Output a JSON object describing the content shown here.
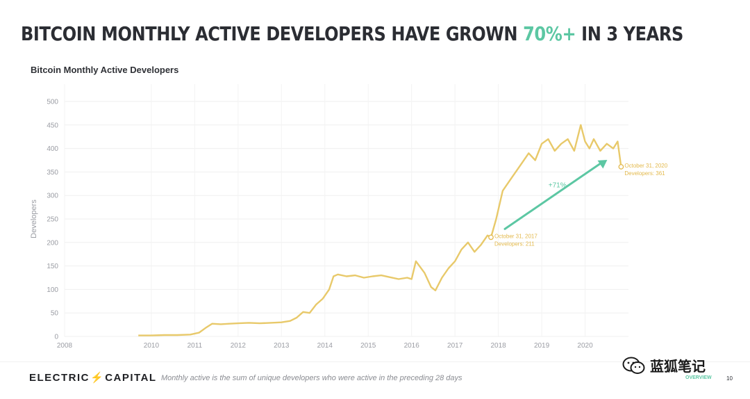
{
  "slide": {
    "headline_pre": "BITCOIN MONTHLY ACTIVE DEVELOPERS HAVE GROWN ",
    "headline_accent": "70%+",
    "headline_post": " IN 3 YEARS",
    "section_tag": "OVERVIEW",
    "page_number": "10"
  },
  "footer": {
    "brand_left": "ELECTRIC",
    "brand_bolt": "⚡",
    "brand_right": "CAPITAL",
    "footnote": "Monthly active is the sum of unique developers who were active in the preceding 28 days"
  },
  "watermark": {
    "text": "蓝狐笔记"
  },
  "colors": {
    "accent": "#5cc7a3",
    "line": "#e8c96a",
    "annotation": "#e3b94c",
    "title": "#2b2d33"
  },
  "chart_data": {
    "type": "line",
    "title": "Bitcoin Monthly Active Developers",
    "xlabel": "",
    "ylabel": "Developers",
    "xlim": [
      2008.0,
      2021.0
    ],
    "ylim": [
      0,
      500
    ],
    "x_ticks": [
      "2008",
      "2010",
      "2011",
      "2012",
      "2013",
      "2014",
      "2015",
      "2016",
      "2017",
      "2018",
      "2019",
      "2020"
    ],
    "y_ticks": [
      0,
      50,
      100,
      150,
      200,
      250,
      300,
      350,
      400,
      450,
      500
    ],
    "grid": true,
    "series": [
      {
        "x": [
          2009.7,
          2010.0,
          2010.3,
          2010.6,
          2010.9,
          2011.1,
          2011.25,
          2011.4,
          2011.6,
          2011.8,
          2012.0,
          2012.25,
          2012.5,
          2012.75,
          2013.0,
          2013.2,
          2013.35,
          2013.5,
          2013.65,
          2013.8,
          2013.95,
          2014.1,
          2014.2,
          2014.3,
          2014.5,
          2014.7,
          2014.9,
          2015.1,
          2015.3,
          2015.5,
          2015.7,
          2015.9,
          2016.0,
          2016.1,
          2016.3,
          2016.45,
          2016.55,
          2016.7,
          2016.85,
          2017.0,
          2017.15,
          2017.3,
          2017.45,
          2017.6,
          2017.75,
          2017.83,
          2017.95,
          2018.1,
          2018.25,
          2018.4,
          2018.55,
          2018.7,
          2018.85,
          2019.0,
          2019.15,
          2019.3,
          2019.45,
          2019.6,
          2019.75,
          2019.9,
          2020.0,
          2020.1,
          2020.2,
          2020.35,
          2020.5,
          2020.65,
          2020.75,
          2020.83
        ],
        "values": [
          2,
          2,
          3,
          3,
          4,
          8,
          18,
          27,
          26,
          27,
          28,
          29,
          28,
          29,
          30,
          33,
          40,
          52,
          50,
          68,
          80,
          100,
          128,
          132,
          128,
          130,
          125,
          128,
          130,
          126,
          122,
          125,
          122,
          160,
          135,
          105,
          98,
          125,
          145,
          160,
          185,
          200,
          180,
          195,
          215,
          211,
          250,
          310,
          330,
          350,
          370,
          390,
          375,
          410,
          420,
          395,
          410,
          420,
          395,
          450,
          415,
          400,
          420,
          395,
          410,
          400,
          415,
          361
        ]
      }
    ],
    "annotations": [
      {
        "line1": "October 31, 2017",
        "line2": "Developers: 211",
        "x": 2017.83,
        "y": 211
      },
      {
        "line1": "October 31, 2020",
        "line2": "Developers: 361",
        "x": 2020.83,
        "y": 361
      }
    ],
    "growth_label": "+71%"
  }
}
